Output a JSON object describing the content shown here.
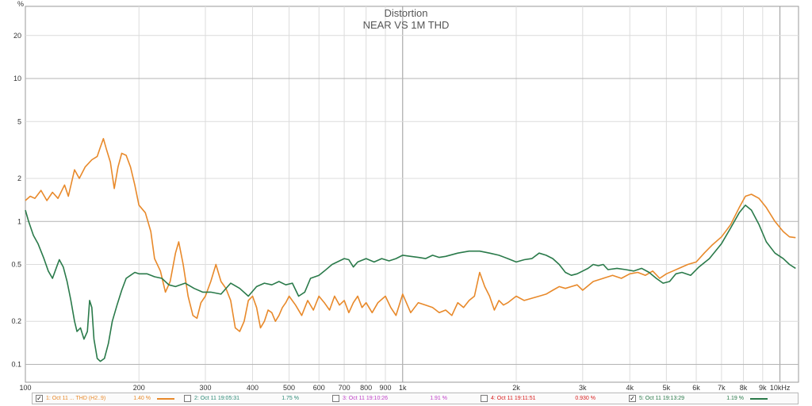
{
  "chart_data": {
    "type": "line",
    "title": "Distortion",
    "subtitle": "NEAR VS 1M THD",
    "ylabel": "%",
    "xlabel": "",
    "x_scale": "log",
    "y_scale": "log",
    "xlim": [
      100,
      11200
    ],
    "ylim": [
      0.075,
      32
    ],
    "grid": true,
    "x_ticks": [
      {
        "value": 100,
        "label": "100"
      },
      {
        "value": 200,
        "label": "200"
      },
      {
        "value": 300,
        "label": "300"
      },
      {
        "value": 400,
        "label": "400"
      },
      {
        "value": 500,
        "label": "500"
      },
      {
        "value": 600,
        "label": "600"
      },
      {
        "value": 700,
        "label": "700"
      },
      {
        "value": 800,
        "label": "800"
      },
      {
        "value": 900,
        "label": "900"
      },
      {
        "value": 1000,
        "label": "1k"
      },
      {
        "value": 2000,
        "label": "2k"
      },
      {
        "value": 3000,
        "label": "3k"
      },
      {
        "value": 4000,
        "label": "4k"
      },
      {
        "value": 5000,
        "label": "5k"
      },
      {
        "value": 6000,
        "label": "6k"
      },
      {
        "value": 7000,
        "label": "7k"
      },
      {
        "value": 8000,
        "label": "8k"
      },
      {
        "value": 9000,
        "label": "9k"
      },
      {
        "value": 10000,
        "label": "10kHz"
      }
    ],
    "y_ticks": [
      {
        "value": 0.1,
        "label": "0.1"
      },
      {
        "value": 0.2,
        "label": "0.2"
      },
      {
        "value": 0.5,
        "label": "0.5"
      },
      {
        "value": 1,
        "label": "1"
      },
      {
        "value": 2,
        "label": "2"
      },
      {
        "value": 5,
        "label": "5"
      },
      {
        "value": 10,
        "label": "10"
      },
      {
        "value": 20,
        "label": "20"
      }
    ],
    "series": [
      {
        "name": "1: Oct 11 ... THD (H2..9)",
        "color": "#e8892a",
        "legend_value": "1.40 %",
        "checked": true,
        "points": [
          [
            100,
            1.4
          ],
          [
            103,
            1.5
          ],
          [
            106,
            1.45
          ],
          [
            110,
            1.65
          ],
          [
            114,
            1.4
          ],
          [
            118,
            1.6
          ],
          [
            122,
            1.45
          ],
          [
            127,
            1.8
          ],
          [
            130,
            1.5
          ],
          [
            135,
            2.3
          ],
          [
            139,
            2.0
          ],
          [
            144,
            2.4
          ],
          [
            150,
            2.7
          ],
          [
            155,
            2.85
          ],
          [
            158,
            3.3
          ],
          [
            161,
            3.8
          ],
          [
            164,
            3.2
          ],
          [
            168,
            2.6
          ],
          [
            172,
            1.7
          ],
          [
            176,
            2.4
          ],
          [
            180,
            3.0
          ],
          [
            185,
            2.9
          ],
          [
            190,
            2.4
          ],
          [
            195,
            1.8
          ],
          [
            200,
            1.3
          ],
          [
            208,
            1.15
          ],
          [
            215,
            0.85
          ],
          [
            220,
            0.55
          ],
          [
            228,
            0.45
          ],
          [
            235,
            0.32
          ],
          [
            242,
            0.38
          ],
          [
            250,
            0.6
          ],
          [
            255,
            0.72
          ],
          [
            262,
            0.5
          ],
          [
            270,
            0.3
          ],
          [
            278,
            0.22
          ],
          [
            285,
            0.21
          ],
          [
            292,
            0.27
          ],
          [
            300,
            0.3
          ],
          [
            310,
            0.38
          ],
          [
            320,
            0.5
          ],
          [
            330,
            0.38
          ],
          [
            340,
            0.34
          ],
          [
            350,
            0.28
          ],
          [
            360,
            0.18
          ],
          [
            370,
            0.17
          ],
          [
            380,
            0.2
          ],
          [
            390,
            0.28
          ],
          [
            400,
            0.3
          ],
          [
            410,
            0.25
          ],
          [
            420,
            0.18
          ],
          [
            430,
            0.2
          ],
          [
            440,
            0.24
          ],
          [
            450,
            0.23
          ],
          [
            460,
            0.2
          ],
          [
            470,
            0.22
          ],
          [
            480,
            0.25
          ],
          [
            490,
            0.27
          ],
          [
            500,
            0.3
          ],
          [
            520,
            0.26
          ],
          [
            540,
            0.22
          ],
          [
            560,
            0.28
          ],
          [
            580,
            0.24
          ],
          [
            600,
            0.3
          ],
          [
            620,
            0.27
          ],
          [
            640,
            0.24
          ],
          [
            660,
            0.3
          ],
          [
            680,
            0.26
          ],
          [
            700,
            0.28
          ],
          [
            720,
            0.23
          ],
          [
            740,
            0.27
          ],
          [
            760,
            0.3
          ],
          [
            780,
            0.25
          ],
          [
            800,
            0.27
          ],
          [
            830,
            0.23
          ],
          [
            860,
            0.27
          ],
          [
            900,
            0.3
          ],
          [
            930,
            0.25
          ],
          [
            960,
            0.22
          ],
          [
            1000,
            0.31
          ],
          [
            1050,
            0.23
          ],
          [
            1100,
            0.27
          ],
          [
            1150,
            0.26
          ],
          [
            1200,
            0.25
          ],
          [
            1250,
            0.23
          ],
          [
            1300,
            0.24
          ],
          [
            1350,
            0.22
          ],
          [
            1400,
            0.27
          ],
          [
            1450,
            0.25
          ],
          [
            1500,
            0.28
          ],
          [
            1550,
            0.3
          ],
          [
            1600,
            0.44
          ],
          [
            1650,
            0.35
          ],
          [
            1700,
            0.3
          ],
          [
            1750,
            0.24
          ],
          [
            1800,
            0.28
          ],
          [
            1850,
            0.26
          ],
          [
            1900,
            0.27
          ],
          [
            2000,
            0.3
          ],
          [
            2100,
            0.28
          ],
          [
            2200,
            0.29
          ],
          [
            2300,
            0.3
          ],
          [
            2400,
            0.31
          ],
          [
            2500,
            0.33
          ],
          [
            2600,
            0.35
          ],
          [
            2700,
            0.34
          ],
          [
            2800,
            0.35
          ],
          [
            2900,
            0.36
          ],
          [
            3000,
            0.33
          ],
          [
            3200,
            0.38
          ],
          [
            3400,
            0.4
          ],
          [
            3600,
            0.42
          ],
          [
            3800,
            0.4
          ],
          [
            4000,
            0.43
          ],
          [
            4200,
            0.44
          ],
          [
            4400,
            0.42
          ],
          [
            4600,
            0.45
          ],
          [
            4800,
            0.4
          ],
          [
            5000,
            0.43
          ],
          [
            5200,
            0.45
          ],
          [
            5400,
            0.47
          ],
          [
            5700,
            0.5
          ],
          [
            6000,
            0.52
          ],
          [
            6300,
            0.6
          ],
          [
            6600,
            0.68
          ],
          [
            7000,
            0.78
          ],
          [
            7400,
            0.95
          ],
          [
            7800,
            1.25
          ],
          [
            8100,
            1.5
          ],
          [
            8400,
            1.55
          ],
          [
            8800,
            1.45
          ],
          [
            9200,
            1.25
          ],
          [
            9700,
            1.0
          ],
          [
            10200,
            0.85
          ],
          [
            10600,
            0.78
          ],
          [
            11000,
            0.77
          ]
        ]
      },
      {
        "name": "2: Oct 11 19:05:31",
        "color": "#2e8b77",
        "legend_value": "1.75 %",
        "checked": false,
        "points": []
      },
      {
        "name": "3: Oct 11 19:10:26",
        "color": "#c040c8",
        "legend_value": "1.91 %",
        "checked": false,
        "points": []
      },
      {
        "name": "4: Oct 11 19:11:51",
        "color": "#d81c1c",
        "legend_value": "0.930 %",
        "checked": false,
        "points": []
      },
      {
        "name": "5: Oct 11 19:13:29",
        "color": "#2a7a4a",
        "legend_value": "1.19 %",
        "checked": true,
        "points": [
          [
            100,
            1.2
          ],
          [
            102,
            1.0
          ],
          [
            105,
            0.8
          ],
          [
            108,
            0.7
          ],
          [
            112,
            0.55
          ],
          [
            115,
            0.45
          ],
          [
            118,
            0.4
          ],
          [
            121,
            0.48
          ],
          [
            123,
            0.54
          ],
          [
            126,
            0.48
          ],
          [
            129,
            0.38
          ],
          [
            132,
            0.28
          ],
          [
            135,
            0.2
          ],
          [
            137,
            0.17
          ],
          [
            140,
            0.18
          ],
          [
            143,
            0.15
          ],
          [
            146,
            0.17
          ],
          [
            148,
            0.28
          ],
          [
            150,
            0.25
          ],
          [
            152,
            0.15
          ],
          [
            155,
            0.11
          ],
          [
            158,
            0.105
          ],
          [
            162,
            0.11
          ],
          [
            166,
            0.14
          ],
          [
            170,
            0.2
          ],
          [
            175,
            0.26
          ],
          [
            180,
            0.33
          ],
          [
            185,
            0.4
          ],
          [
            190,
            0.42
          ],
          [
            195,
            0.44
          ],
          [
            200,
            0.43
          ],
          [
            210,
            0.43
          ],
          [
            220,
            0.41
          ],
          [
            230,
            0.4
          ],
          [
            240,
            0.36
          ],
          [
            250,
            0.35
          ],
          [
            265,
            0.37
          ],
          [
            280,
            0.34
          ],
          [
            295,
            0.32
          ],
          [
            310,
            0.32
          ],
          [
            330,
            0.31
          ],
          [
            350,
            0.37
          ],
          [
            370,
            0.34
          ],
          [
            390,
            0.3
          ],
          [
            410,
            0.35
          ],
          [
            430,
            0.37
          ],
          [
            450,
            0.36
          ],
          [
            470,
            0.38
          ],
          [
            490,
            0.36
          ],
          [
            510,
            0.37
          ],
          [
            530,
            0.3
          ],
          [
            550,
            0.32
          ],
          [
            570,
            0.4
          ],
          [
            600,
            0.42
          ],
          [
            620,
            0.45
          ],
          [
            650,
            0.5
          ],
          [
            680,
            0.53
          ],
          [
            700,
            0.55
          ],
          [
            720,
            0.54
          ],
          [
            740,
            0.48
          ],
          [
            760,
            0.52
          ],
          [
            800,
            0.55
          ],
          [
            840,
            0.52
          ],
          [
            880,
            0.55
          ],
          [
            920,
            0.53
          ],
          [
            960,
            0.55
          ],
          [
            1000,
            0.58
          ],
          [
            1050,
            0.57
          ],
          [
            1100,
            0.56
          ],
          [
            1150,
            0.55
          ],
          [
            1200,
            0.58
          ],
          [
            1250,
            0.56
          ],
          [
            1300,
            0.57
          ],
          [
            1400,
            0.6
          ],
          [
            1500,
            0.62
          ],
          [
            1600,
            0.62
          ],
          [
            1700,
            0.6
          ],
          [
            1800,
            0.58
          ],
          [
            1900,
            0.55
          ],
          [
            2000,
            0.52
          ],
          [
            2100,
            0.54
          ],
          [
            2200,
            0.55
          ],
          [
            2300,
            0.6
          ],
          [
            2400,
            0.58
          ],
          [
            2500,
            0.55
          ],
          [
            2600,
            0.5
          ],
          [
            2700,
            0.44
          ],
          [
            2800,
            0.42
          ],
          [
            2900,
            0.43
          ],
          [
            3000,
            0.45
          ],
          [
            3100,
            0.47
          ],
          [
            3200,
            0.5
          ],
          [
            3300,
            0.49
          ],
          [
            3400,
            0.5
          ],
          [
            3500,
            0.46
          ],
          [
            3700,
            0.47
          ],
          [
            3900,
            0.46
          ],
          [
            4100,
            0.45
          ],
          [
            4300,
            0.47
          ],
          [
            4500,
            0.44
          ],
          [
            4700,
            0.4
          ],
          [
            4900,
            0.37
          ],
          [
            5100,
            0.38
          ],
          [
            5300,
            0.43
          ],
          [
            5500,
            0.44
          ],
          [
            5800,
            0.42
          ],
          [
            6100,
            0.48
          ],
          [
            6500,
            0.55
          ],
          [
            7000,
            0.7
          ],
          [
            7400,
            0.9
          ],
          [
            7800,
            1.15
          ],
          [
            8100,
            1.3
          ],
          [
            8400,
            1.2
          ],
          [
            8800,
            0.95
          ],
          [
            9200,
            0.72
          ],
          [
            9700,
            0.6
          ],
          [
            10200,
            0.55
          ],
          [
            10600,
            0.5
          ],
          [
            11000,
            0.47
          ]
        ]
      }
    ]
  }
}
